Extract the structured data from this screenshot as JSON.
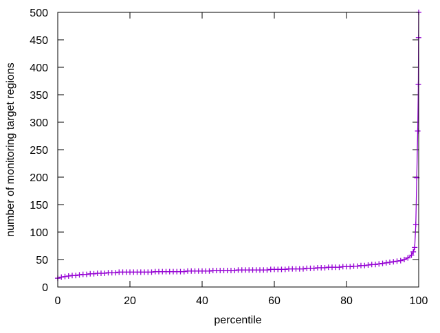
{
  "chart_data": {
    "type": "line",
    "title": "",
    "xlabel": "percentile",
    "ylabel": "number of monitoring target regions",
    "xlim": [
      0,
      100
    ],
    "ylim": [
      0,
      500
    ],
    "xticks": [
      "0",
      "20",
      "40",
      "60",
      "80",
      "100"
    ],
    "yticks": [
      "0",
      "50",
      "100",
      "150",
      "200",
      "250",
      "300",
      "350",
      "400",
      "450",
      "500"
    ],
    "grid": false,
    "legend": "none",
    "marker": "plus",
    "color": "#9400d3",
    "series": [
      {
        "x": [
          0,
          1,
          2,
          3,
          4,
          5,
          6,
          7,
          8,
          9,
          10,
          11,
          12,
          13,
          14,
          15,
          16,
          17,
          18,
          19,
          20,
          21,
          22,
          23,
          24,
          25,
          26,
          27,
          28,
          29,
          30,
          31,
          32,
          33,
          34,
          35,
          36,
          37,
          38,
          39,
          40,
          41,
          42,
          43,
          44,
          45,
          46,
          47,
          48,
          49,
          50,
          51,
          52,
          53,
          54,
          55,
          56,
          57,
          58,
          59,
          60,
          61,
          62,
          63,
          64,
          65,
          66,
          67,
          68,
          69,
          70,
          71,
          72,
          73,
          74,
          75,
          76,
          77,
          78,
          79,
          80,
          81,
          82,
          83,
          84,
          85,
          86,
          87,
          88,
          89,
          90,
          91,
          92,
          93,
          94,
          95,
          96,
          97,
          98,
          98.5,
          98.9,
          99.2,
          99.47,
          99.73,
          99.9,
          99.97,
          100
        ],
        "y": [
          16,
          18,
          19,
          20,
          21,
          21,
          22,
          23,
          23,
          24,
          24,
          25,
          25,
          25,
          26,
          26,
          26,
          27,
          27,
          27,
          27,
          27,
          27,
          27,
          27,
          27,
          27,
          28,
          28,
          28,
          28,
          28,
          28,
          28,
          28,
          28,
          29,
          29,
          29,
          29,
          29,
          29,
          29,
          30,
          30,
          30,
          30,
          30,
          30,
          30,
          31,
          31,
          31,
          31,
          31,
          31,
          31,
          31,
          31,
          32,
          32,
          32,
          32,
          32,
          33,
          33,
          33,
          33,
          33,
          34,
          34,
          34,
          35,
          35,
          35,
          36,
          36,
          36,
          36,
          37,
          37,
          37,
          38,
          38,
          39,
          39,
          40,
          41,
          41,
          42,
          43,
          44,
          45,
          46,
          47,
          48,
          50,
          53,
          58,
          64,
          72,
          114,
          199,
          284,
          369,
          454,
          500
        ]
      }
    ]
  }
}
